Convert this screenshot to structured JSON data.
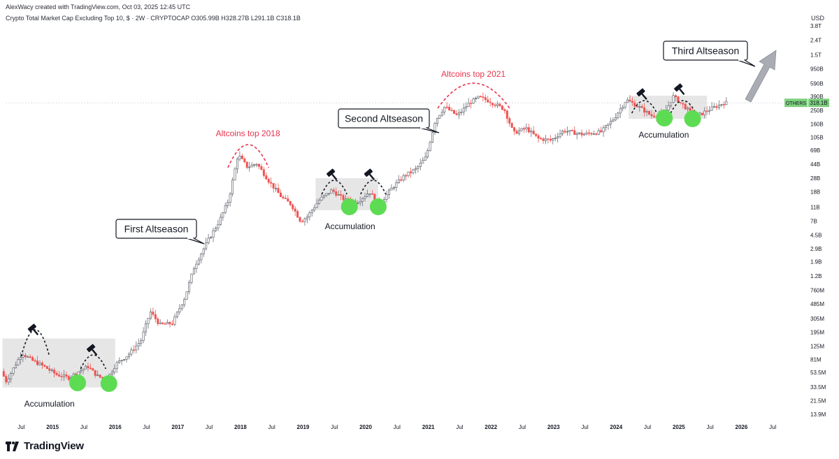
{
  "header": {
    "attribution": "AlexWacy created with TradingView.com, Oct 03, 2025 12:45 UTC",
    "symbol_line": "Crypto Total Market Cap Excluding Top 10, $ · 2W · CRYPTOCAP   O305.99B  H328.27B  L291.1B  C318.1B",
    "currency": "USD"
  },
  "footer": {
    "brand": "TradingView"
  },
  "colors": {
    "up": "#26a69a",
    "down": "#ef5350",
    "candle_body": "#4a4e58",
    "annotation_red": "#e8344e",
    "accumulation_green": "#5ddc53",
    "box_fill": "#e0e0e0",
    "badge": "#7ed07e",
    "arrow": "#a9acb3"
  },
  "chart_data": {
    "type": "candlestick",
    "title": "Crypto Total Market Cap Excluding Top 10, $",
    "timeframe": "2W",
    "source": "CRYPTOCAP",
    "ohlc_last": {
      "open": "305.99B",
      "high": "328.27B",
      "low": "291.1B",
      "close": "318.1B"
    },
    "y_scale": "log",
    "ylim": [
      10000000,
      4000000000000
    ],
    "y_ticks": [
      {
        "label": "3.8T",
        "value": 3800000000000
      },
      {
        "label": "2.4T",
        "value": 2400000000000
      },
      {
        "label": "1.5T",
        "value": 1500000000000
      },
      {
        "label": "950B",
        "value": 950000000000
      },
      {
        "label": "590B",
        "value": 590000000000
      },
      {
        "label": "390B",
        "value": 390000000000
      },
      {
        "label": "250B",
        "value": 250000000000
      },
      {
        "label": "160B",
        "value": 160000000000
      },
      {
        "label": "105B",
        "value": 105000000000
      },
      {
        "label": "69B",
        "value": 69000000000
      },
      {
        "label": "44B",
        "value": 44000000000
      },
      {
        "label": "28B",
        "value": 28000000000
      },
      {
        "label": "18B",
        "value": 18000000000
      },
      {
        "label": "11B",
        "value": 11000000000
      },
      {
        "label": "7B",
        "value": 7000000000
      },
      {
        "label": "4.5B",
        "value": 4500000000
      },
      {
        "label": "2.9B",
        "value": 2900000000
      },
      {
        "label": "1.9B",
        "value": 1900000000
      },
      {
        "label": "1.2B",
        "value": 1200000000
      },
      {
        "label": "760M",
        "value": 760000000
      },
      {
        "label": "485M",
        "value": 485000000
      },
      {
        "label": "305M",
        "value": 305000000
      },
      {
        "label": "195M",
        "value": 195000000
      },
      {
        "label": "125M",
        "value": 125000000
      },
      {
        "label": "81M",
        "value": 81000000
      },
      {
        "label": "53.5M",
        "value": 53500000
      },
      {
        "label": "33.5M",
        "value": 33500000
      },
      {
        "label": "21.5M",
        "value": 21500000
      },
      {
        "label": "13.9M",
        "value": 13900000
      }
    ],
    "x_range": [
      2014.25,
      2027.0
    ],
    "x_ticks": [
      {
        "label": "Jul",
        "t": 2014.5
      },
      {
        "label": "2015",
        "t": 2015.0,
        "year": true
      },
      {
        "label": "Jul",
        "t": 2015.5
      },
      {
        "label": "2016",
        "t": 2016.0,
        "year": true
      },
      {
        "label": "Jul",
        "t": 2016.5
      },
      {
        "label": "2017",
        "t": 2017.0,
        "year": true
      },
      {
        "label": "Jul",
        "t": 2017.5
      },
      {
        "label": "2018",
        "t": 2018.0,
        "year": true
      },
      {
        "label": "Jul",
        "t": 2018.5
      },
      {
        "label": "2019",
        "t": 2019.0,
        "year": true
      },
      {
        "label": "Jul",
        "t": 2019.5
      },
      {
        "label": "2020",
        "t": 2020.0,
        "year": true
      },
      {
        "label": "Jul",
        "t": 2020.5
      },
      {
        "label": "2021",
        "t": 2021.0,
        "year": true
      },
      {
        "label": "Jul",
        "t": 2021.5
      },
      {
        "label": "2022",
        "t": 2022.0,
        "year": true
      },
      {
        "label": "Jul",
        "t": 2022.5
      },
      {
        "label": "2023",
        "t": 2023.0,
        "year": true
      },
      {
        "label": "Jul",
        "t": 2023.5
      },
      {
        "label": "2024",
        "t": 2024.0,
        "year": true
      },
      {
        "label": "Jul",
        "t": 2024.5
      },
      {
        "label": "2025",
        "t": 2025.0,
        "year": true
      },
      {
        "label": "Jul",
        "t": 2025.5
      },
      {
        "label": "2026",
        "t": 2026.0,
        "year": true
      },
      {
        "label": "Jul",
        "t": 2026.5
      }
    ],
    "price_path": [
      [
        2014.2,
        60000000
      ],
      [
        2014.3,
        40000000
      ],
      [
        2014.45,
        70000000
      ],
      [
        2014.55,
        100000000
      ],
      [
        2014.7,
        80000000
      ],
      [
        2014.9,
        65000000
      ],
      [
        2015.1,
        50000000
      ],
      [
        2015.3,
        45000000
      ],
      [
        2015.45,
        55000000
      ],
      [
        2015.6,
        65000000
      ],
      [
        2015.75,
        48000000
      ],
      [
        2015.9,
        42000000
      ],
      [
        2016.05,
        70000000
      ],
      [
        2016.25,
        95000000
      ],
      [
        2016.45,
        150000000
      ],
      [
        2016.6,
        380000000
      ],
      [
        2016.75,
        250000000
      ],
      [
        2016.95,
        260000000
      ],
      [
        2017.15,
        600000000
      ],
      [
        2017.3,
        1600000000
      ],
      [
        2017.5,
        3500000000
      ],
      [
        2017.7,
        7000000000
      ],
      [
        2017.85,
        14000000000
      ],
      [
        2018.0,
        60000000000
      ],
      [
        2018.15,
        40000000000
      ],
      [
        2018.3,
        45000000000
      ],
      [
        2018.5,
        25000000000
      ],
      [
        2018.7,
        15000000000
      ],
      [
        2018.85,
        12000000000
      ],
      [
        2019.0,
        7000000000
      ],
      [
        2019.1,
        8000000000
      ],
      [
        2019.3,
        14000000000
      ],
      [
        2019.5,
        19000000000
      ],
      [
        2019.7,
        14000000000
      ],
      [
        2019.9,
        13000000000
      ],
      [
        2020.1,
        18000000000
      ],
      [
        2020.25,
        12000000000
      ],
      [
        2020.45,
        20000000000
      ],
      [
        2020.65,
        30000000000
      ],
      [
        2020.85,
        38000000000
      ],
      [
        2021.0,
        55000000000
      ],
      [
        2021.15,
        180000000000
      ],
      [
        2021.3,
        280000000000
      ],
      [
        2021.5,
        210000000000
      ],
      [
        2021.7,
        320000000000
      ],
      [
        2021.85,
        380000000000
      ],
      [
        2022.0,
        340000000000
      ],
      [
        2022.25,
        260000000000
      ],
      [
        2022.4,
        120000000000
      ],
      [
        2022.6,
        140000000000
      ],
      [
        2022.8,
        100000000000
      ],
      [
        2023.0,
        95000000000
      ],
      [
        2023.2,
        130000000000
      ],
      [
        2023.5,
        115000000000
      ],
      [
        2023.8,
        125000000000
      ],
      [
        2024.0,
        190000000000
      ],
      [
        2024.2,
        350000000000
      ],
      [
        2024.4,
        280000000000
      ],
      [
        2024.6,
        210000000000
      ],
      [
        2024.8,
        220000000000
      ],
      [
        2024.95,
        390000000000
      ],
      [
        2025.1,
        300000000000
      ],
      [
        2025.3,
        200000000000
      ],
      [
        2025.5,
        250000000000
      ],
      [
        2025.7,
        300000000000
      ],
      [
        2025.75,
        318100000000
      ]
    ],
    "last_price": {
      "label": "OTHERS",
      "value_label": "318.1B",
      "value": 318100000000
    },
    "annotations": {
      "callouts": [
        {
          "text": "First Altseason"
        },
        {
          "text": "Second Altseason"
        },
        {
          "text": "Third Altseason"
        }
      ],
      "tops": [
        {
          "text": "Altcoins top 2018"
        },
        {
          "text": "Altcoins top 2021"
        }
      ],
      "accumulation": [
        {
          "text": "Accumulation"
        },
        {
          "text": "Accumulation"
        },
        {
          "text": "Accumulation"
        }
      ]
    }
  }
}
